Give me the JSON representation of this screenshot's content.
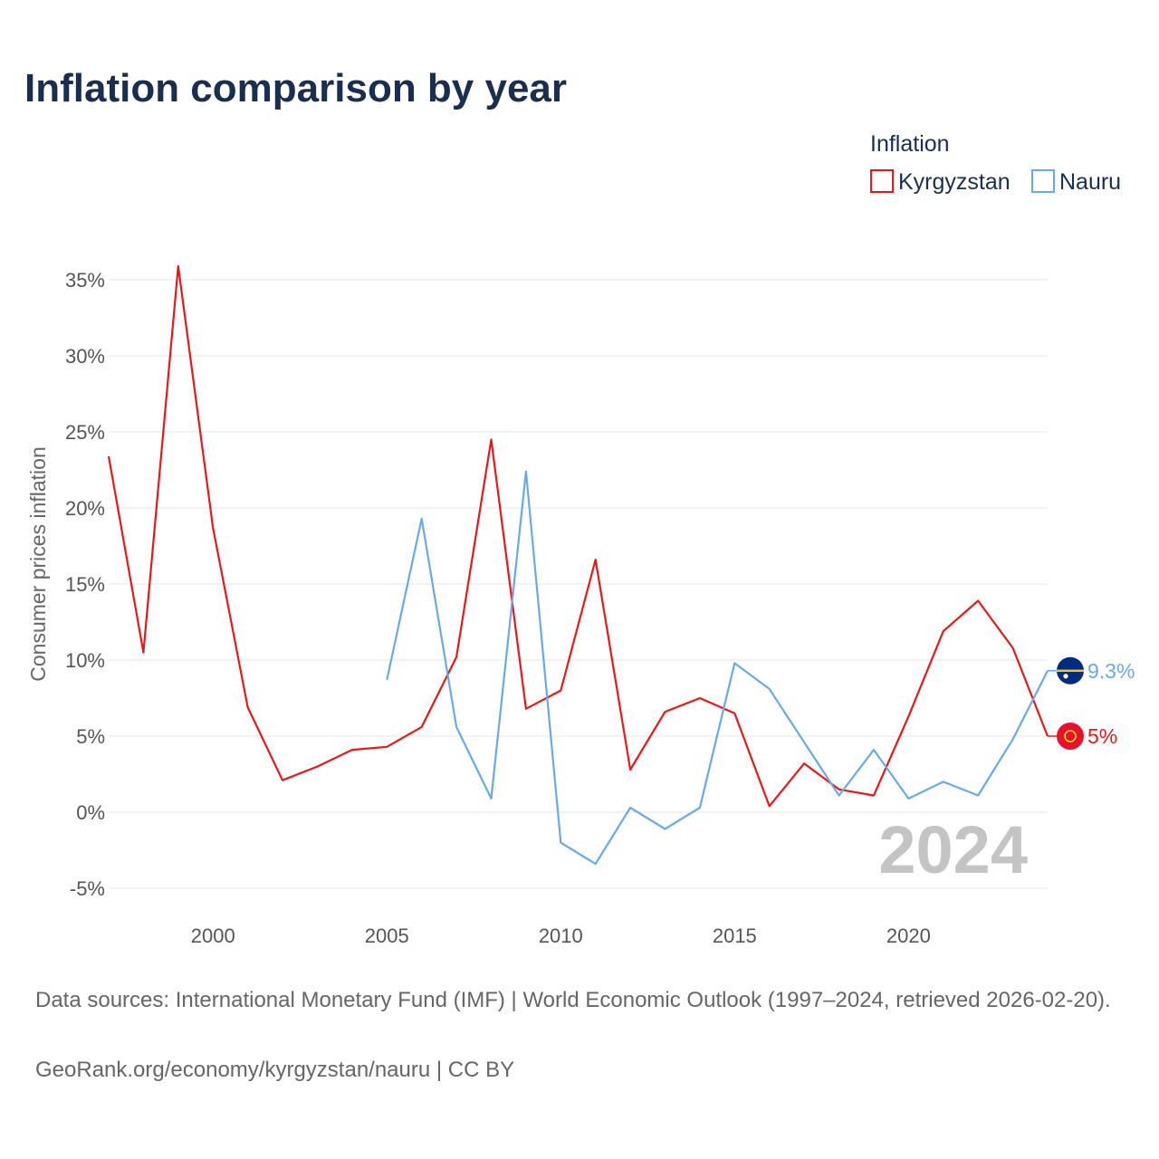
{
  "title": "Inflation comparison by year",
  "legend": {
    "title": "Inflation",
    "items": [
      {
        "name": "Kyrgyzstan",
        "color": "#e31a1c"
      },
      {
        "name": "Nauru",
        "color": "#6aaae4"
      }
    ]
  },
  "year_stamp": "2024",
  "footer": {
    "sources": "Data sources: International Monetary Fund (IMF) | World Economic Outlook (1997–2024, retrieved 2026-02-20).",
    "attribution_link": "GeoRank.org/economy/kyrgyzstan/nauru",
    "license": "CC BY"
  },
  "chart_data": {
    "type": "line",
    "title": "Inflation comparison by year",
    "xlabel": "",
    "ylabel": "Consumer prices inflation",
    "xlim": [
      1997,
      2024
    ],
    "ylim": [
      -7,
      37
    ],
    "x_ticks": [
      2000,
      2005,
      2010,
      2015,
      2020
    ],
    "x_tick_labels": [
      "2000",
      "2005",
      "2010",
      "2015",
      "2020"
    ],
    "y_ticks": [
      -5,
      0,
      5,
      10,
      15,
      20,
      25,
      30,
      35
    ],
    "y_tick_labels": [
      "-5%",
      "0%",
      "5%",
      "10%",
      "15%",
      "20%",
      "25%",
      "30%",
      "35%"
    ],
    "grid": true,
    "legend_position": "top-right",
    "series": [
      {
        "name": "Kyrgyzstan",
        "color": "#e31a1c",
        "end_label": "5%",
        "x": [
          1997,
          1998,
          1999,
          2000,
          2001,
          2002,
          2003,
          2004,
          2005,
          2006,
          2007,
          2008,
          2009,
          2010,
          2011,
          2012,
          2013,
          2014,
          2015,
          2016,
          2017,
          2018,
          2019,
          2020,
          2021,
          2022,
          2023,
          2024
        ],
        "values": [
          23.4,
          10.5,
          35.9,
          18.7,
          6.9,
          2.1,
          3.0,
          4.1,
          4.3,
          5.6,
          10.2,
          24.5,
          6.8,
          8.0,
          16.6,
          2.8,
          6.6,
          7.5,
          6.5,
          0.4,
          3.2,
          1.5,
          1.1,
          6.3,
          11.9,
          13.9,
          10.8,
          5.0
        ]
      },
      {
        "name": "Nauru",
        "color": "#6aaae4",
        "end_label": "9.3%",
        "x": [
          2005,
          2006,
          2007,
          2008,
          2009,
          2010,
          2011,
          2012,
          2013,
          2014,
          2015,
          2016,
          2017,
          2018,
          2019,
          2020,
          2021,
          2022,
          2023,
          2024
        ],
        "values": [
          8.7,
          19.3,
          5.6,
          0.9,
          22.4,
          -2.0,
          -3.4,
          0.3,
          -1.1,
          0.3,
          9.8,
          8.1,
          4.6,
          1.1,
          4.1,
          0.9,
          2.0,
          1.1,
          4.8,
          9.3
        ]
      }
    ]
  }
}
